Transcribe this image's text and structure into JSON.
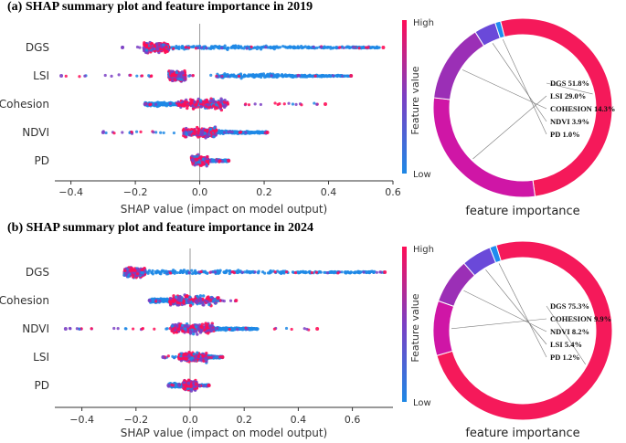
{
  "colors": {
    "low": "#1e88e5",
    "mid": "#7b3fc4",
    "high": "#ff0d57",
    "axis": "#333333"
  },
  "chart_data": [
    {
      "type": "scatter",
      "title": "(a) SHAP summary plot and feature importance in 2019",
      "xlabel": "SHAP value (impact on model output)",
      "xlim": [
        -0.45,
        0.6
      ],
      "xticks": [
        -0.4,
        -0.2,
        0.0,
        0.2,
        0.4,
        0.6
      ],
      "xtick_labels": [
        "−0.4",
        "−0.2",
        "0.0",
        "0.2",
        "0.4",
        "0.6"
      ],
      "colorbar": {
        "label": "Feature value",
        "high": "High",
        "low": "Low"
      },
      "features": [
        {
          "name": "DGS",
          "min": -0.24,
          "max": 0.57,
          "core_low": -0.15,
          "core_high": -0.12,
          "lowcol": [
            -0.12,
            0.56
          ]
        },
        {
          "name": "LSI",
          "min": -0.43,
          "max": 0.47,
          "core_low": -0.08,
          "core_high": -0.06,
          "lowcol": [
            0.05,
            0.47
          ]
        },
        {
          "name": "Cohesion",
          "min": -0.17,
          "max": 0.39,
          "core_low": -0.02,
          "core_high": 0.04,
          "lowcol": [
            -0.17,
            -0.02
          ]
        },
        {
          "name": "NDVI",
          "min": -0.3,
          "max": 0.21,
          "core_low": -0.02,
          "core_high": 0.02,
          "lowcol": [
            0.0,
            0.21
          ]
        },
        {
          "name": "PD",
          "min": -0.02,
          "max": 0.09,
          "core_low": -0.01,
          "core_high": 0.01,
          "lowcol": [
            -0.02,
            0.09
          ]
        }
      ],
      "donut": {
        "caption": "feature importance",
        "slices": [
          {
            "label": "DGS 51.8%",
            "value": 51.8,
            "color": "#f5195a"
          },
          {
            "label": "LSI 29.0%",
            "value": 29.0,
            "color": "#cf16a6"
          },
          {
            "label": "COHESION 14.3%",
            "value": 14.3,
            "color": "#9b2fb6"
          },
          {
            "label": "NDVI 3.9%",
            "value": 3.9,
            "color": "#6a49d9"
          },
          {
            "label": "PD 1.0%",
            "value": 1.0,
            "color": "#1f8cf0"
          }
        ]
      }
    },
    {
      "type": "scatter",
      "title": "(b) SHAP summary plot and feature importance in 2024",
      "xlabel": "SHAP value (impact on model output)",
      "xlim": [
        -0.5,
        0.75
      ],
      "xticks": [
        -0.4,
        -0.2,
        0.0,
        0.2,
        0.4,
        0.6
      ],
      "xtick_labels": [
        "−0.4",
        "−0.2",
        "0.0",
        "0.2",
        "0.4",
        "0.6"
      ],
      "colorbar": {
        "label": "Feature value",
        "high": "High",
        "low": "Low"
      },
      "features": [
        {
          "name": "DGS",
          "min": -0.23,
          "max": 0.72,
          "core_low": -0.22,
          "core_high": -0.19,
          "lowcol": [
            -0.19,
            0.72
          ]
        },
        {
          "name": "Cohesion",
          "min": -0.15,
          "max": 0.17,
          "core_low": -0.02,
          "core_high": 0.05,
          "lowcol": [
            -0.15,
            -0.02
          ]
        },
        {
          "name": "NDVI",
          "min": -0.46,
          "max": 0.47,
          "core_low": -0.02,
          "core_high": 0.04,
          "lowcol": [
            0.0,
            0.25
          ]
        },
        {
          "name": "LSI",
          "min": -0.1,
          "max": 0.12,
          "core_low": -0.01,
          "core_high": 0.03,
          "lowcol": [
            0.02,
            0.12
          ]
        },
        {
          "name": "PD",
          "min": -0.08,
          "max": 0.07,
          "core_low": -0.01,
          "core_high": 0.01,
          "lowcol": [
            -0.08,
            0.07
          ]
        }
      ],
      "donut": {
        "caption": "feature importance",
        "slices": [
          {
            "label": "DGS 75.3%",
            "value": 75.3,
            "color": "#f5195a"
          },
          {
            "label": "COHESION 9.9%",
            "value": 9.9,
            "color": "#cf16a6"
          },
          {
            "label": "NDVI 8.2%",
            "value": 8.2,
            "color": "#9b2fb6"
          },
          {
            "label": "LSI 5.4%",
            "value": 5.4,
            "color": "#6a49d9"
          },
          {
            "label": "PD 1.2%",
            "value": 1.2,
            "color": "#1f8cf0"
          }
        ]
      }
    }
  ]
}
